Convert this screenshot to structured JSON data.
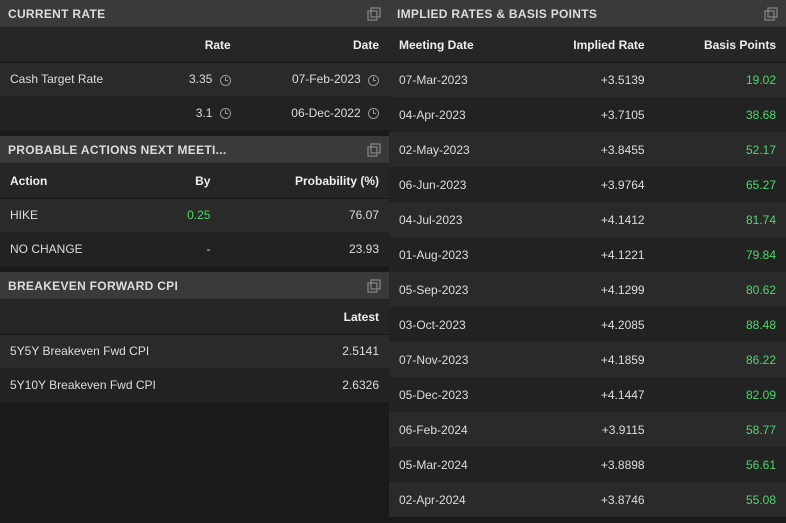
{
  "colors": {
    "green": "#4fd86a",
    "bg": "#1a1a1a",
    "row_odd": "#2a2a2a",
    "row_even": "#222222",
    "header_bg": "#3a3a3a",
    "th_bg": "#262626",
    "text": "#dddddd"
  },
  "currentRate": {
    "title": "CURRENT RATE",
    "headers": {
      "rate": "Rate",
      "date": "Date"
    },
    "rows": [
      {
        "label": "Cash Target Rate",
        "rate": "3.35",
        "date": "07-Feb-2023"
      },
      {
        "label": "",
        "rate": "3.1",
        "date": "06-Dec-2022"
      }
    ]
  },
  "actions": {
    "title": "PROBABLE ACTIONS NEXT MEETI...",
    "headers": {
      "action": "Action",
      "by": "By",
      "prob": "Probability (%)"
    },
    "rows": [
      {
        "action": "HIKE",
        "by": "0.25",
        "by_green": true,
        "prob": "76.07"
      },
      {
        "action": "NO CHANGE",
        "by": "-",
        "by_green": false,
        "prob": "23.93"
      }
    ]
  },
  "cpi": {
    "title": "BREAKEVEN FORWARD CPI",
    "headers": {
      "latest": "Latest"
    },
    "rows": [
      {
        "label": "5Y5Y Breakeven Fwd CPI",
        "latest": "2.5141"
      },
      {
        "label": "5Y10Y Breakeven Fwd CPI",
        "latest": "2.6326"
      }
    ]
  },
  "implied": {
    "title": "IMPLIED RATES & BASIS POINTS",
    "headers": {
      "date": "Meeting Date",
      "rate": "Implied Rate",
      "bp": "Basis Points"
    },
    "rows": [
      {
        "date": "07-Mar-2023",
        "rate": "+3.5139",
        "bp": "19.02"
      },
      {
        "date": "04-Apr-2023",
        "rate": "+3.7105",
        "bp": "38.68"
      },
      {
        "date": "02-May-2023",
        "rate": "+3.8455",
        "bp": "52.17"
      },
      {
        "date": "06-Jun-2023",
        "rate": "+3.9764",
        "bp": "65.27"
      },
      {
        "date": "04-Jul-2023",
        "rate": "+4.1412",
        "bp": "81.74"
      },
      {
        "date": "01-Aug-2023",
        "rate": "+4.1221",
        "bp": "79.84"
      },
      {
        "date": "05-Sep-2023",
        "rate": "+4.1299",
        "bp": "80.62"
      },
      {
        "date": "03-Oct-2023",
        "rate": "+4.2085",
        "bp": "88.48"
      },
      {
        "date": "07-Nov-2023",
        "rate": "+4.1859",
        "bp": "86.22"
      },
      {
        "date": "05-Dec-2023",
        "rate": "+4.1447",
        "bp": "82.09"
      },
      {
        "date": "06-Feb-2024",
        "rate": "+3.9115",
        "bp": "58.77"
      },
      {
        "date": "05-Mar-2024",
        "rate": "+3.8898",
        "bp": "56.61"
      },
      {
        "date": "02-Apr-2024",
        "rate": "+3.8746",
        "bp": "55.08"
      }
    ]
  }
}
